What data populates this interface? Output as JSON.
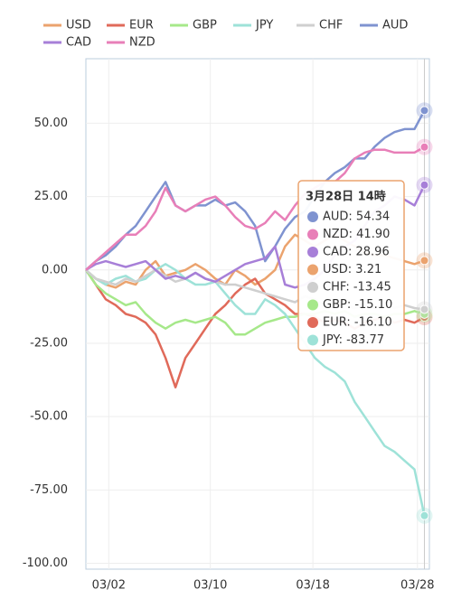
{
  "chart_data": {
    "type": "line",
    "x": [
      0,
      1,
      2,
      3,
      4,
      5,
      6,
      7,
      8,
      9,
      10,
      11,
      12,
      13,
      14,
      15,
      16,
      17,
      18,
      19,
      20,
      21,
      22,
      23,
      24,
      25,
      26,
      27,
      28,
      29,
      30,
      31,
      32,
      33,
      34
    ],
    "xlim": [
      0,
      34.5
    ],
    "xticks": [
      {
        "value": 2.3,
        "label": "03/02"
      },
      {
        "value": 12.5,
        "label": "03/10"
      },
      {
        "value": 22.8,
        "label": "03/18"
      },
      {
        "value": 33.3,
        "label": "03/28"
      }
    ],
    "ylim": [
      -102,
      72
    ],
    "yticks": [
      {
        "value": -100,
        "label": "-100.00"
      },
      {
        "value": -75,
        "label": "-75.00"
      },
      {
        "value": -50,
        "label": "-50.00"
      },
      {
        "value": -25,
        "label": "-25.00"
      },
      {
        "value": 0,
        "label": "0.00"
      },
      {
        "value": 25,
        "label": "25.00"
      },
      {
        "value": 50,
        "label": "50.00"
      }
    ],
    "grid": true,
    "legend": "top",
    "series": [
      {
        "name": "USD",
        "color": "#eba36e",
        "values": [
          0,
          -3,
          -5,
          -6,
          -4,
          -5,
          0,
          3,
          -2,
          -1,
          0,
          2,
          0,
          -3,
          -5,
          0,
          -2,
          -5,
          -3,
          0,
          8,
          12,
          10,
          8,
          10,
          12,
          10,
          8,
          6,
          5,
          5,
          4,
          3,
          2,
          3.21
        ]
      },
      {
        "name": "EUR",
        "color": "#e06a5a",
        "values": [
          0,
          -5,
          -10,
          -12,
          -15,
          -16,
          -18,
          -22,
          -30,
          -40,
          -30,
          -25,
          -20,
          -15,
          -12,
          -8,
          -5,
          -3,
          -8,
          -10,
          -12,
          -15,
          -15,
          -16,
          -18,
          -17,
          -18,
          -20,
          -18,
          -17,
          -16,
          -18,
          -17,
          -18,
          -16.1
        ]
      },
      {
        "name": "GBP",
        "color": "#a6e88a",
        "values": [
          0,
          -5,
          -8,
          -10,
          -12,
          -11,
          -15,
          -18,
          -20,
          -18,
          -17,
          -18,
          -17,
          -16,
          -18,
          -22,
          -22,
          -20,
          -18,
          -17,
          -16,
          -16,
          -15,
          -15,
          -14,
          -15,
          -14,
          -16,
          -15,
          -15,
          -16,
          -15,
          -15,
          -14,
          -15.1
        ]
      },
      {
        "name": "JPY",
        "color": "#9ee2d8",
        "values": [
          0,
          -3,
          -5,
          -3,
          -2,
          -4,
          -3,
          0,
          2,
          0,
          -3,
          -5,
          -5,
          -4,
          -8,
          -12,
          -15,
          -15,
          -10,
          -12,
          -15,
          -20,
          -25,
          -30,
          -33,
          -35,
          -38,
          -45,
          -50,
          -55,
          -60,
          -62,
          -65,
          -68,
          -83.77
        ]
      },
      {
        "name": "CHF",
        "color": "#cfcfcf",
        "values": [
          0,
          -3,
          -4,
          -5,
          -3,
          -4,
          -2,
          0,
          -2,
          -4,
          -3,
          -1,
          -3,
          -4,
          -5,
          -5,
          -6,
          -7,
          -8,
          -9,
          -10,
          -11,
          -9,
          -10,
          -12,
          -11,
          -12,
          -13,
          -12,
          -13,
          -12,
          -13,
          -12,
          -13,
          -13.45
        ]
      },
      {
        "name": "AUD",
        "color": "#7f93d0",
        "values": [
          0,
          3,
          5,
          8,
          12,
          15,
          20,
          25,
          30,
          22,
          20,
          22,
          22,
          24,
          22,
          23,
          20,
          15,
          3,
          8,
          14,
          18,
          20,
          25,
          30,
          33,
          35,
          38,
          38,
          42,
          45,
          47,
          48,
          48,
          54.34
        ]
      },
      {
        "name": "CAD",
        "color": "#a77fd8",
        "values": [
          0,
          2,
          3,
          2,
          1,
          2,
          3,
          0,
          -3,
          -2,
          -3,
          -1,
          -3,
          -4,
          -2,
          0,
          2,
          3,
          4,
          8,
          -5,
          -6,
          -5,
          -3,
          0,
          5,
          8,
          10,
          15,
          20,
          22,
          25,
          24,
          22,
          28.96
        ]
      },
      {
        "name": "NZD",
        "color": "#e87fb8",
        "values": [
          0,
          3,
          6,
          9,
          12,
          12,
          15,
          20,
          28,
          22,
          20,
          22,
          24,
          25,
          22,
          18,
          15,
          14,
          16,
          20,
          17,
          22,
          26,
          28,
          30,
          30,
          33,
          38,
          40,
          41,
          41,
          40,
          40,
          40,
          41.9
        ]
      }
    ],
    "tooltip": {
      "title": "3月28日 14時",
      "items": [
        {
          "text": "AUD: 54.34",
          "color": "#7f93d0"
        },
        {
          "text": "NZD: 41.90",
          "color": "#e87fb8"
        },
        {
          "text": "CAD: 28.96",
          "color": "#a77fd8"
        },
        {
          "text": "USD: 3.21",
          "color": "#eba36e"
        },
        {
          "text": "CHF: -13.45",
          "color": "#cfcfcf"
        },
        {
          "text": "GBP: -15.10",
          "color": "#a6e88a"
        },
        {
          "text": "EUR: -16.10",
          "color": "#e06a5a"
        },
        {
          "text": "JPY: -83.77",
          "color": "#9ee2d8"
        }
      ]
    }
  }
}
